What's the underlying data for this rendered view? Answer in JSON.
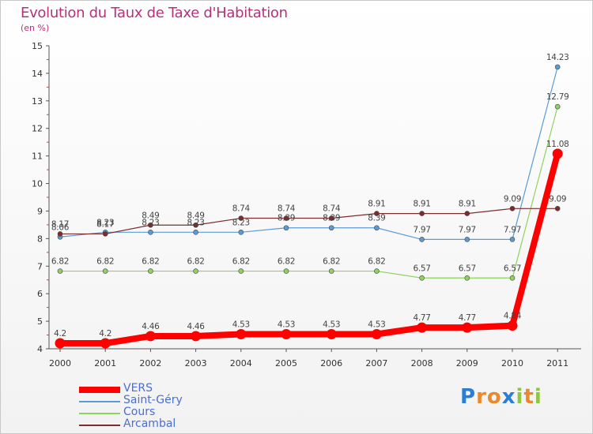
{
  "chart_data": {
    "type": "line",
    "title": "Evolution du Taux de Taxe d'Habitation",
    "subtitle": "(en %)",
    "x": [
      "2000",
      "2001",
      "2002",
      "2003",
      "2004",
      "2005",
      "2006",
      "2007",
      "2008",
      "2009",
      "2010",
      "2011"
    ],
    "ylim": [
      4,
      15
    ],
    "yticks": [
      4,
      5,
      6,
      7,
      8,
      9,
      10,
      11,
      12,
      13,
      14,
      15
    ],
    "grid": false,
    "legend_position": "bottom-left",
    "series": [
      {
        "name": "VERS",
        "color": "#ff0000",
        "values": [
          4.2,
          4.2,
          4.46,
          4.46,
          4.53,
          4.53,
          4.53,
          4.53,
          4.77,
          4.77,
          4.84,
          11.08
        ],
        "labels": [
          "4.2",
          "4.2",
          "4.46",
          "4.46",
          "4.53",
          "4.53",
          "4.53",
          "4.53",
          "4.77",
          "4.77",
          "4.84",
          "11.08"
        ]
      },
      {
        "name": "Saint-Géry",
        "color": "#5b9bd5",
        "values": [
          8.06,
          8.23,
          8.23,
          8.23,
          8.23,
          8.39,
          8.39,
          8.39,
          7.97,
          7.97,
          7.97,
          14.23
        ],
        "labels": [
          "8.06",
          "8.23",
          "8.23",
          "8.23",
          "8.23",
          "8.39",
          "8.39",
          "8.39",
          "7.97",
          "7.97",
          "7.97",
          "14.23"
        ]
      },
      {
        "name": "Cours",
        "color": "#8dd35f",
        "values": [
          6.82,
          6.82,
          6.82,
          6.82,
          6.82,
          6.82,
          6.82,
          6.82,
          6.57,
          6.57,
          6.57,
          12.79
        ],
        "labels": [
          "6.82",
          "6.82",
          "6.82",
          "6.82",
          "6.82",
          "6.82",
          "6.82",
          "6.82",
          "6.57",
          "6.57",
          "6.57",
          "12.79"
        ]
      },
      {
        "name": "Arcambal",
        "color": "#7b2c2c",
        "values": [
          8.17,
          8.17,
          8.49,
          8.49,
          8.74,
          8.74,
          8.74,
          8.91,
          8.91,
          8.91,
          9.09,
          9.09
        ],
        "labels": [
          "8.17",
          "8.17",
          "8.49",
          "8.49",
          "8.74",
          "8.74",
          "8.74",
          "8.91",
          "8.91",
          "8.91",
          "9.09",
          "9.09"
        ]
      }
    ]
  },
  "logo_text": [
    "P",
    "r",
    "o",
    "x",
    "i",
    "t",
    "i"
  ],
  "logo_colors": [
    "#2a7fd4",
    "#e8892a",
    "#e8892a",
    "#2a7fd4",
    "#8dc63f",
    "#e8892a",
    "#8dc63f"
  ]
}
